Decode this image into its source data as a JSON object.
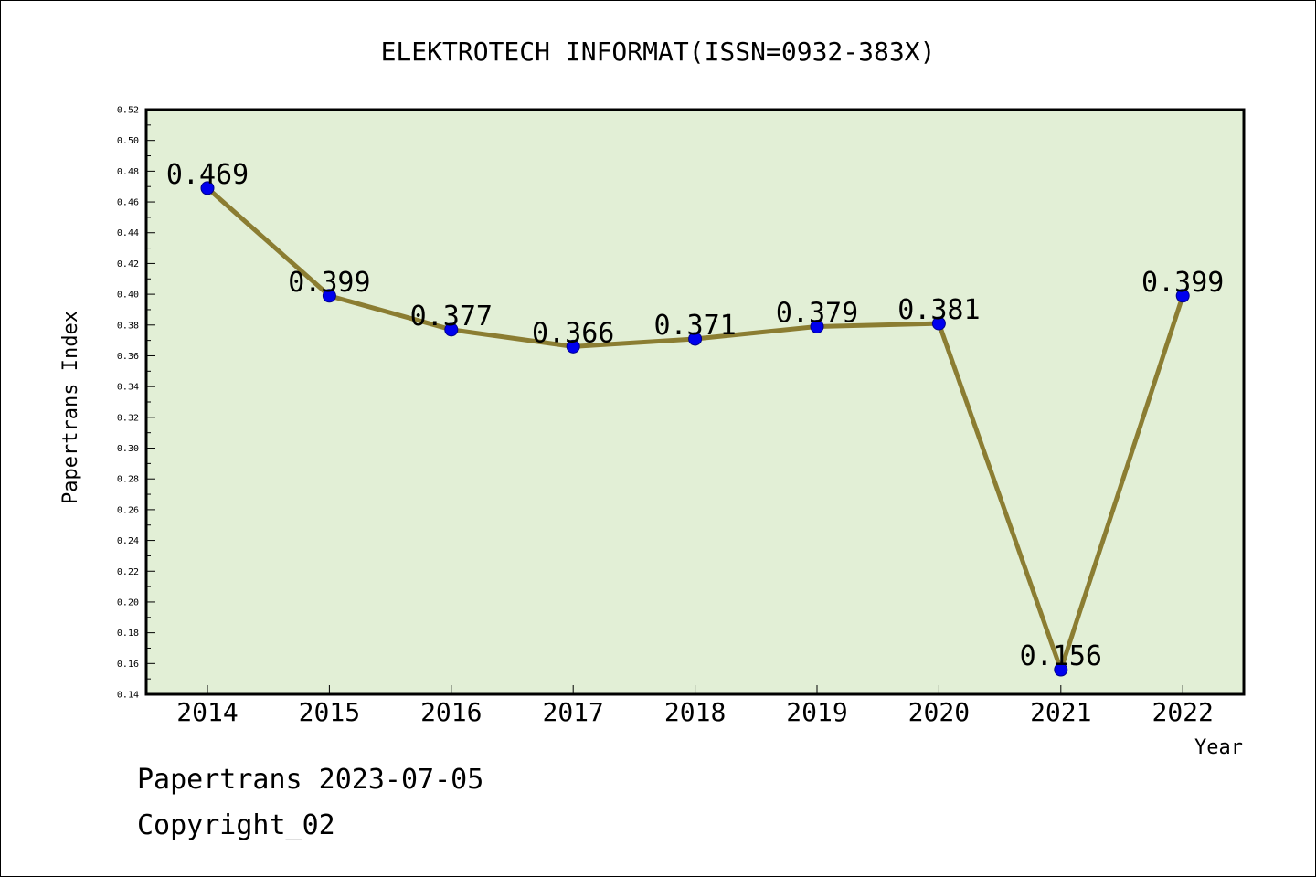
{
  "footer": {
    "line1": "Papertrans 2023-07-05",
    "line2": "Copyright_02"
  },
  "colors": {
    "plot_background": "#e2efd6",
    "line": "#8b7d32",
    "marker": "#0000ee"
  },
  "chart_data": {
    "type": "line",
    "title": "ELEKTROTECH INFORMAT(ISSN=0932-383X)",
    "xlabel": "Year",
    "ylabel": "Papertrans Index",
    "categories": [
      "2014",
      "2015",
      "2016",
      "2017",
      "2018",
      "2019",
      "2020",
      "2021",
      "2022"
    ],
    "values": [
      0.469,
      0.399,
      0.377,
      0.366,
      0.371,
      0.379,
      0.381,
      0.156,
      0.399
    ],
    "data_labels": [
      "0.469",
      "0.399",
      "0.377",
      "0.366",
      "0.371",
      "0.379",
      "0.381",
      "0.156",
      "0.399"
    ],
    "ylim": [
      0.14,
      0.52
    ],
    "yticks": [
      "0.14",
      "0.16",
      "0.18",
      "0.20",
      "0.22",
      "0.24",
      "0.26",
      "0.28",
      "0.30",
      "0.32",
      "0.34",
      "0.36",
      "0.38",
      "0.40",
      "0.42",
      "0.44",
      "0.46",
      "0.48",
      "0.50",
      "0.52"
    ],
    "grid": false,
    "legend": "none"
  }
}
